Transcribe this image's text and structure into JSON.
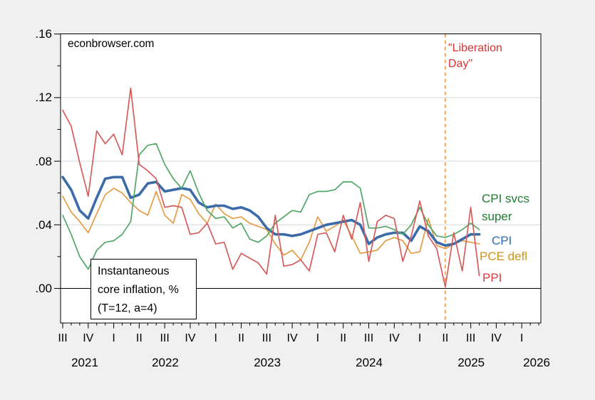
{
  "watermark": "econbrowser.com",
  "annotation_box": {
    "lines": [
      "Instantaneous",
      "core inflation, %",
      "(T=12, a=4)"
    ]
  },
  "event_line": {
    "label": "\"Liberation\nDay\"",
    "month": "2025-04",
    "month_index": 45,
    "line_color": "#f08828",
    "label_color": "#da3232"
  },
  "legend": [
    {
      "name": "CPI svcs super",
      "label": "CPI svcs\nsuper",
      "color": "#1f7d33"
    },
    {
      "name": "CPI",
      "label": "CPI",
      "color": "#2d6cb5"
    },
    {
      "name": "PCE defl",
      "label": "PCE defl",
      "color": "#d0941f"
    },
    {
      "name": "PPI",
      "label": "PPI",
      "color": "#e03a3a"
    }
  ],
  "chart_data": {
    "type": "line",
    "title": "",
    "xlabel": "",
    "ylabel": "",
    "grid": "horizontal",
    "ylim": [
      -0.022,
      0.16
    ],
    "ytick_labels": [
      ".16",
      ".12",
      ".08",
      ".04",
      ".00"
    ],
    "ytick_values": [
      0.16,
      0.12,
      0.08,
      0.04,
      0.0
    ],
    "yminor_values": [
      0.14,
      0.1,
      0.06,
      0.02
    ],
    "gridline_values": [
      0.12,
      0.08,
      0.04
    ],
    "zero_line_value": 0.0,
    "x_months": [
      "2021-07",
      "2021-08",
      "2021-09",
      "2021-10",
      "2021-11",
      "2021-12",
      "2022-01",
      "2022-02",
      "2022-03",
      "2022-04",
      "2022-05",
      "2022-06",
      "2022-07",
      "2022-08",
      "2022-09",
      "2022-10",
      "2022-11",
      "2022-12",
      "2023-01",
      "2023-02",
      "2023-03",
      "2023-04",
      "2023-05",
      "2023-06",
      "2023-07",
      "2023-08",
      "2023-09",
      "2023-10",
      "2023-11",
      "2023-12",
      "2024-01",
      "2024-02",
      "2024-03",
      "2024-04",
      "2024-05",
      "2024-06",
      "2024-07",
      "2024-08",
      "2024-09",
      "2024-10",
      "2024-11",
      "2024-12",
      "2025-01",
      "2025-02",
      "2025-03",
      "2025-04",
      "2025-05",
      "2025-06",
      "2025-07",
      "2025-08"
    ],
    "quarter_ticks": [
      {
        "m": 0,
        "label": "III"
      },
      {
        "m": 3,
        "label": "IV"
      },
      {
        "m": 6,
        "label": "I"
      },
      {
        "m": 9,
        "label": "II"
      },
      {
        "m": 12,
        "label": "III"
      },
      {
        "m": 15,
        "label": "IV"
      },
      {
        "m": 18,
        "label": "I"
      },
      {
        "m": 21,
        "label": "II"
      },
      {
        "m": 24,
        "label": "III"
      },
      {
        "m": 27,
        "label": "IV"
      },
      {
        "m": 30,
        "label": "I"
      },
      {
        "m": 33,
        "label": "II"
      },
      {
        "m": 36,
        "label": "III"
      },
      {
        "m": 39,
        "label": "IV"
      },
      {
        "m": 42,
        "label": "I"
      },
      {
        "m": 45,
        "label": "II"
      },
      {
        "m": 48,
        "label": "III"
      },
      {
        "m": 51,
        "label": "IV"
      },
      {
        "m": 54,
        "label": "I"
      }
    ],
    "year_labels": [
      {
        "label": "2021",
        "m": 2.6
      },
      {
        "label": "2022",
        "m": 12.07
      },
      {
        "label": "2023",
        "m": 24.07
      },
      {
        "label": "2024",
        "m": 36.05
      },
      {
        "label": "2025",
        "m": 48.05
      },
      {
        "label": "2026",
        "m": 55.75
      }
    ],
    "series": [
      {
        "name": "CPI svcs super",
        "color": "#52a666",
        "width": 1.7,
        "draw": 3,
        "values": [
          0.046,
          0.034,
          0.02,
          0.012,
          0.024,
          0.029,
          0.03,
          0.034,
          0.042,
          0.084,
          0.09,
          0.091,
          0.078,
          0.069,
          0.063,
          0.074,
          0.06,
          0.049,
          0.044,
          0.045,
          0.038,
          0.041,
          0.031,
          0.029,
          0.033,
          0.041,
          0.045,
          0.049,
          0.048,
          0.059,
          0.061,
          0.061,
          0.062,
          0.067,
          0.067,
          0.063,
          0.038,
          0.038,
          0.039,
          0.037,
          0.034,
          0.04,
          0.051,
          0.04,
          0.033,
          0.032,
          0.034,
          0.037,
          0.041,
          0.037
        ]
      },
      {
        "name": "CPI",
        "color": "#3b6ca8",
        "width": 3.6,
        "draw": 2,
        "values": [
          0.07,
          0.062,
          0.049,
          0.044,
          0.057,
          0.069,
          0.07,
          0.07,
          0.057,
          0.059,
          0.066,
          0.067,
          0.061,
          0.062,
          0.063,
          0.062,
          0.054,
          0.051,
          0.052,
          0.052,
          0.05,
          0.051,
          0.049,
          0.045,
          0.038,
          0.034,
          0.034,
          0.033,
          0.034,
          0.036,
          0.038,
          0.04,
          0.041,
          0.042,
          0.043,
          0.04,
          0.028,
          0.032,
          0.034,
          0.035,
          0.035,
          0.03,
          0.039,
          0.036,
          0.029,
          0.027,
          0.028,
          0.031,
          0.034,
          0.034
        ]
      },
      {
        "name": "PCE defl",
        "color": "#e69c46",
        "width": 1.7,
        "draw": 1,
        "values": [
          0.058,
          0.048,
          0.042,
          0.035,
          0.047,
          0.059,
          0.063,
          0.06,
          0.054,
          0.049,
          0.046,
          0.061,
          0.046,
          0.041,
          0.059,
          0.056,
          0.047,
          0.041,
          0.053,
          0.047,
          0.044,
          0.045,
          0.041,
          0.039,
          0.037,
          0.028,
          0.021,
          0.024,
          0.018,
          0.029,
          0.045,
          0.036,
          0.039,
          0.043,
          0.033,
          0.022,
          0.023,
          0.024,
          0.03,
          0.032,
          0.03,
          0.022,
          0.023,
          0.044,
          0.027,
          0.025,
          0.028,
          0.03,
          0.029,
          0.028
        ]
      },
      {
        "name": "PPI",
        "color": "#d65c5c",
        "width": 1.7,
        "draw": 4,
        "values": [
          0.112,
          0.102,
          0.079,
          0.058,
          0.099,
          0.091,
          0.097,
          0.084,
          0.126,
          0.078,
          0.074,
          0.069,
          0.051,
          0.052,
          0.051,
          0.034,
          0.035,
          0.041,
          0.028,
          0.029,
          0.012,
          0.022,
          0.019,
          0.016,
          0.009,
          0.046,
          0.014,
          0.015,
          0.018,
          0.011,
          0.034,
          0.035,
          0.023,
          0.046,
          0.031,
          0.054,
          0.017,
          0.042,
          0.046,
          0.044,
          0.017,
          0.033,
          0.055,
          0.033,
          0.025,
          0.001,
          0.035,
          0.011,
          0.051,
          0.008
        ]
      }
    ]
  }
}
